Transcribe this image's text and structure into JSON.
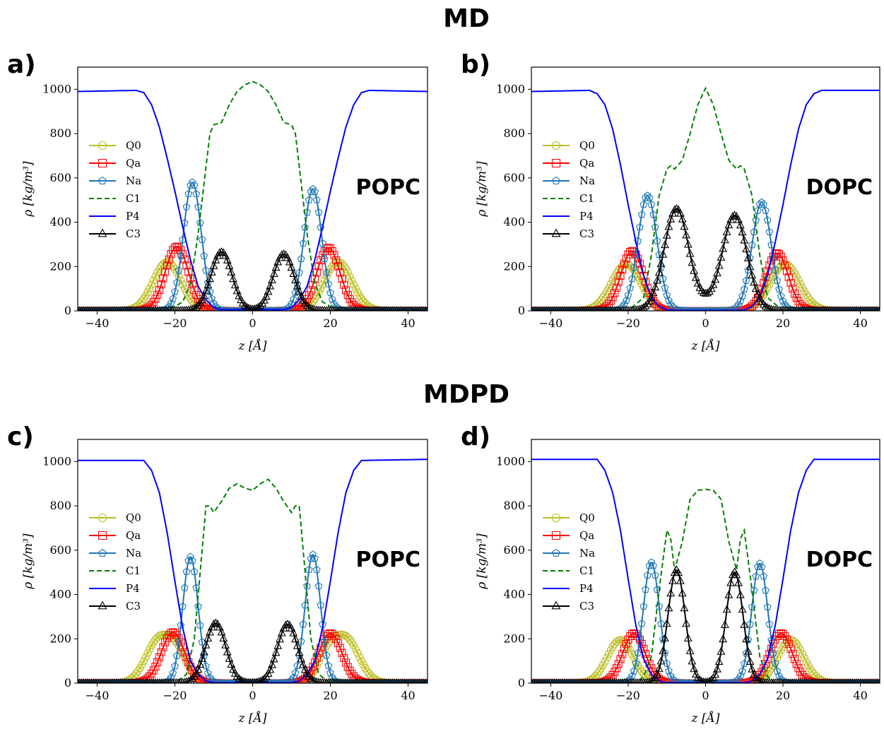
{
  "sections": {
    "top": "MD",
    "bottom": "MDPD"
  },
  "colors": {
    "Q0": "#bcbd22",
    "Qa": "#ff0000",
    "Na": "#1f77b4",
    "C1": "#008000",
    "P4": "#0000ff",
    "C3": "#000000"
  },
  "chart_data": [
    {
      "type": "line",
      "panel": "a)",
      "annotation": "POPC",
      "xlabel": "z [Å]",
      "ylabel": "ρ [kg/m³]",
      "xlim": [
        -45,
        45
      ],
      "ylim": [
        0,
        1100
      ],
      "xticks": [
        "−40",
        "−20",
        "0",
        "20",
        "40"
      ],
      "yticks": [
        "0",
        "200",
        "400",
        "600",
        "800",
        "1000"
      ],
      "legend": [
        "Q0",
        "Qa",
        "Na",
        "C1",
        "P4",
        "C3"
      ],
      "legend_position": "center-left",
      "series": [
        {
          "name": "Q0",
          "marker": "circle",
          "style": "gauss",
          "components": [
            [
              -22,
              220,
              3.6
            ],
            [
              22,
              220,
              3.6
            ]
          ]
        },
        {
          "name": "Qa",
          "marker": "square",
          "style": "gauss",
          "components": [
            [
              -19.5,
              290,
              3.0
            ],
            [
              19.5,
              285,
              3.0
            ]
          ]
        },
        {
          "name": "Na",
          "marker": "pentagon",
          "style": "gauss",
          "components": [
            [
              -15.5,
              580,
              2.3
            ],
            [
              15.5,
              550,
              2.3
            ]
          ]
        },
        {
          "name": "C1",
          "marker": "none",
          "style": "points",
          "dashed": true,
          "x": [
            -45,
            -22,
            -18,
            -16,
            -14,
            -12,
            -11,
            -10,
            -8,
            -6,
            -4,
            -2,
            0,
            2,
            4,
            6,
            8,
            10,
            11,
            12,
            14,
            16,
            18,
            22,
            45
          ],
          "y": [
            0,
            0,
            40,
            120,
            350,
            650,
            800,
            840,
            850,
            930,
            990,
            1020,
            1035,
            1020,
            990,
            930,
            850,
            840,
            800,
            650,
            350,
            120,
            40,
            0,
            0
          ]
        },
        {
          "name": "P4",
          "marker": "none",
          "style": "points",
          "x": [
            -45,
            -30,
            -28,
            -26,
            -24,
            -22,
            -20,
            -18,
            -16,
            -14,
            -12,
            -10,
            -8,
            8,
            10,
            12,
            14,
            16,
            18,
            20,
            22,
            24,
            26,
            28,
            30,
            45
          ],
          "y": [
            990,
            995,
            985,
            930,
            830,
            690,
            540,
            380,
            230,
            110,
            50,
            15,
            5,
            5,
            15,
            50,
            110,
            230,
            380,
            540,
            690,
            830,
            930,
            985,
            995,
            990
          ]
        },
        {
          "name": "C3",
          "marker": "triangle",
          "style": "gauss",
          "components": [
            [
              -8,
              265,
              2.7
            ],
            [
              8,
              255,
              2.7
            ]
          ]
        }
      ]
    },
    {
      "type": "line",
      "panel": "b)",
      "annotation": "DOPC",
      "xlabel": "z [Å]",
      "ylabel": "ρ [kg/m³]",
      "xlim": [
        -45,
        45
      ],
      "ylim": [
        0,
        1100
      ],
      "xticks": [
        "−40",
        "−20",
        "0",
        "20",
        "40"
      ],
      "yticks": [
        "0",
        "200",
        "400",
        "600",
        "800",
        "1000"
      ],
      "legend": [
        "Q0",
        "Qa",
        "Na",
        "C1",
        "P4",
        "C3"
      ],
      "legend_position": "center-left",
      "series": [
        {
          "name": "Q0",
          "marker": "circle",
          "style": "gauss",
          "components": [
            [
              -20.5,
              210,
              3.8
            ],
            [
              20.5,
              210,
              3.8
            ]
          ]
        },
        {
          "name": "Qa",
          "marker": "square",
          "style": "gauss",
          "components": [
            [
              -19,
              270,
              2.9
            ],
            [
              18.5,
              260,
              2.9
            ]
          ]
        },
        {
          "name": "Na",
          "marker": "pentagon",
          "style": "gauss",
          "components": [
            [
              -15,
              520,
              2.5
            ],
            [
              14.5,
              490,
              2.5
            ]
          ]
        },
        {
          "name": "C1",
          "marker": "none",
          "style": "points",
          "dashed": true,
          "x": [
            -45,
            -20,
            -16,
            -14,
            -12,
            -10,
            -9,
            -8,
            -6,
            -4,
            -2,
            0,
            2,
            4,
            6,
            8,
            9,
            10,
            12,
            14,
            16,
            20,
            45
          ],
          "y": [
            0,
            0,
            60,
            250,
            520,
            640,
            655,
            640,
            680,
            800,
            930,
            1005,
            930,
            800,
            680,
            640,
            655,
            640,
            520,
            250,
            60,
            0,
            0
          ]
        },
        {
          "name": "P4",
          "marker": "none",
          "style": "points",
          "x": [
            -45,
            -30,
            -28,
            -26,
            -24,
            -22,
            -20,
            -18,
            -16,
            -14,
            -12,
            -10,
            -8,
            8,
            10,
            12,
            14,
            16,
            18,
            20,
            22,
            24,
            26,
            28,
            30,
            45
          ],
          "y": [
            990,
            995,
            980,
            930,
            820,
            660,
            480,
            310,
            160,
            60,
            20,
            5,
            2,
            2,
            5,
            20,
            60,
            160,
            310,
            480,
            660,
            820,
            930,
            980,
            995,
            995
          ]
        },
        {
          "name": "C3",
          "marker": "triangle",
          "style": "gauss",
          "components": [
            [
              -7.5,
              460,
              3.2
            ],
            [
              7.5,
              430,
              3.2
            ],
            [
              0,
              20,
              2.0
            ]
          ]
        }
      ]
    },
    {
      "type": "line",
      "panel": "c)",
      "annotation": "POPC",
      "xlabel": "z [Å]",
      "ylabel": "ρ [kg/m³]",
      "xlim": [
        -45,
        45
      ],
      "ylim": [
        0,
        1100
      ],
      "xticks": [
        "−40",
        "−20",
        "0",
        "20",
        "40"
      ],
      "yticks": [
        "0",
        "200",
        "400",
        "600",
        "800",
        "1000"
      ],
      "legend": [
        "Q0",
        "Qa",
        "Na",
        "C1",
        "P4",
        "C3"
      ],
      "legend_position": "center-left",
      "series": [
        {
          "name": "Q0",
          "marker": "circle",
          "style": "gauss",
          "components": [
            [
              -24,
              200,
              3.4
            ],
            [
              24,
              200,
              3.4
            ],
            [
              -19,
              100,
              2.5
            ],
            [
              19,
              100,
              2.5
            ]
          ]
        },
        {
          "name": "Qa",
          "marker": "square",
          "style": "gauss",
          "components": [
            [
              -20.5,
              230,
              3.0
            ],
            [
              20,
              225,
              3.0
            ]
          ]
        },
        {
          "name": "Na",
          "marker": "pentagon",
          "style": "gauss",
          "components": [
            [
              -16,
              570,
              2.0
            ],
            [
              15.5,
              580,
              2.0
            ]
          ]
        },
        {
          "name": "C1",
          "marker": "none",
          "style": "points",
          "dashed": true,
          "x": [
            -45,
            -20,
            -17,
            -15,
            -13,
            -12,
            -11,
            -10,
            -8,
            -6,
            -4,
            -2,
            0,
            2,
            4,
            6,
            8,
            10,
            11,
            12,
            13,
            15,
            17,
            20,
            45
          ],
          "y": [
            0,
            0,
            40,
            200,
            600,
            800,
            800,
            770,
            820,
            880,
            900,
            880,
            870,
            900,
            920,
            880,
            820,
            770,
            800,
            800,
            600,
            200,
            40,
            0,
            0
          ]
        },
        {
          "name": "P4",
          "marker": "none",
          "style": "points",
          "x": [
            -45,
            -28,
            -26,
            -24,
            -22,
            -20,
            -18,
            -16,
            -14,
            -12,
            -10,
            10,
            12,
            14,
            16,
            18,
            20,
            22,
            24,
            26,
            28,
            45
          ],
          "y": [
            1005,
            1005,
            960,
            860,
            680,
            460,
            250,
            100,
            40,
            10,
            2,
            2,
            10,
            40,
            100,
            250,
            460,
            680,
            860,
            960,
            1005,
            1010
          ]
        },
        {
          "name": "C3",
          "marker": "triangle",
          "style": "gauss",
          "components": [
            [
              -9.5,
              270,
              2.6
            ],
            [
              9,
              265,
              2.6
            ]
          ]
        }
      ]
    },
    {
      "type": "line",
      "panel": "d)",
      "annotation": "DOPC",
      "xlabel": "z [Å]",
      "ylabel": "ρ [kg/m³]",
      "xlim": [
        -45,
        45
      ],
      "ylim": [
        0,
        1100
      ],
      "xticks": [
        "−40",
        "−20",
        "0",
        "20",
        "40"
      ],
      "yticks": [
        "0",
        "200",
        "400",
        "600",
        "800",
        "1000"
      ],
      "legend": [
        "Q0",
        "Qa",
        "Na",
        "C1",
        "P4",
        "C3"
      ],
      "legend_position": "center-left",
      "series": [
        {
          "name": "Q0",
          "marker": "circle",
          "style": "gauss",
          "components": [
            [
              -22,
              195,
              3.4
            ],
            [
              22,
              195,
              3.4
            ]
          ]
        },
        {
          "name": "Qa",
          "marker": "square",
          "style": "gauss",
          "components": [
            [
              -18.5,
              225,
              2.9
            ],
            [
              19.5,
              225,
              2.9
            ]
          ]
        },
        {
          "name": "Na",
          "marker": "pentagon",
          "style": "gauss",
          "components": [
            [
              -14,
              545,
              2.1
            ],
            [
              14,
              540,
              2.1
            ]
          ]
        },
        {
          "name": "C1",
          "marker": "none",
          "style": "points",
          "dashed": true,
          "x": [
            -45,
            -18,
            -16,
            -14,
            -12,
            -10,
            -9,
            -8,
            -6,
            -4,
            -2,
            0,
            2,
            4,
            6,
            8,
            9,
            10,
            12,
            14,
            16,
            18,
            45
          ],
          "y": [
            0,
            0,
            30,
            120,
            420,
            690,
            650,
            510,
            640,
            830,
            870,
            875,
            870,
            830,
            640,
            510,
            650,
            690,
            420,
            120,
            30,
            0,
            0
          ]
        },
        {
          "name": "P4",
          "marker": "none",
          "style": "points",
          "x": [
            -45,
            -28,
            -26,
            -24,
            -22,
            -20,
            -18,
            -16,
            -14,
            -12,
            -10,
            10,
            12,
            14,
            16,
            18,
            20,
            22,
            24,
            26,
            28,
            45
          ],
          "y": [
            1010,
            1010,
            960,
            860,
            690,
            470,
            260,
            110,
            40,
            10,
            2,
            2,
            10,
            40,
            110,
            260,
            470,
            690,
            860,
            960,
            1010,
            1010
          ]
        },
        {
          "name": "C3",
          "marker": "triangle",
          "style": "gauss",
          "components": [
            [
              -7.5,
              510,
              2.2
            ],
            [
              7.5,
              500,
              2.2
            ]
          ]
        }
      ]
    }
  ]
}
